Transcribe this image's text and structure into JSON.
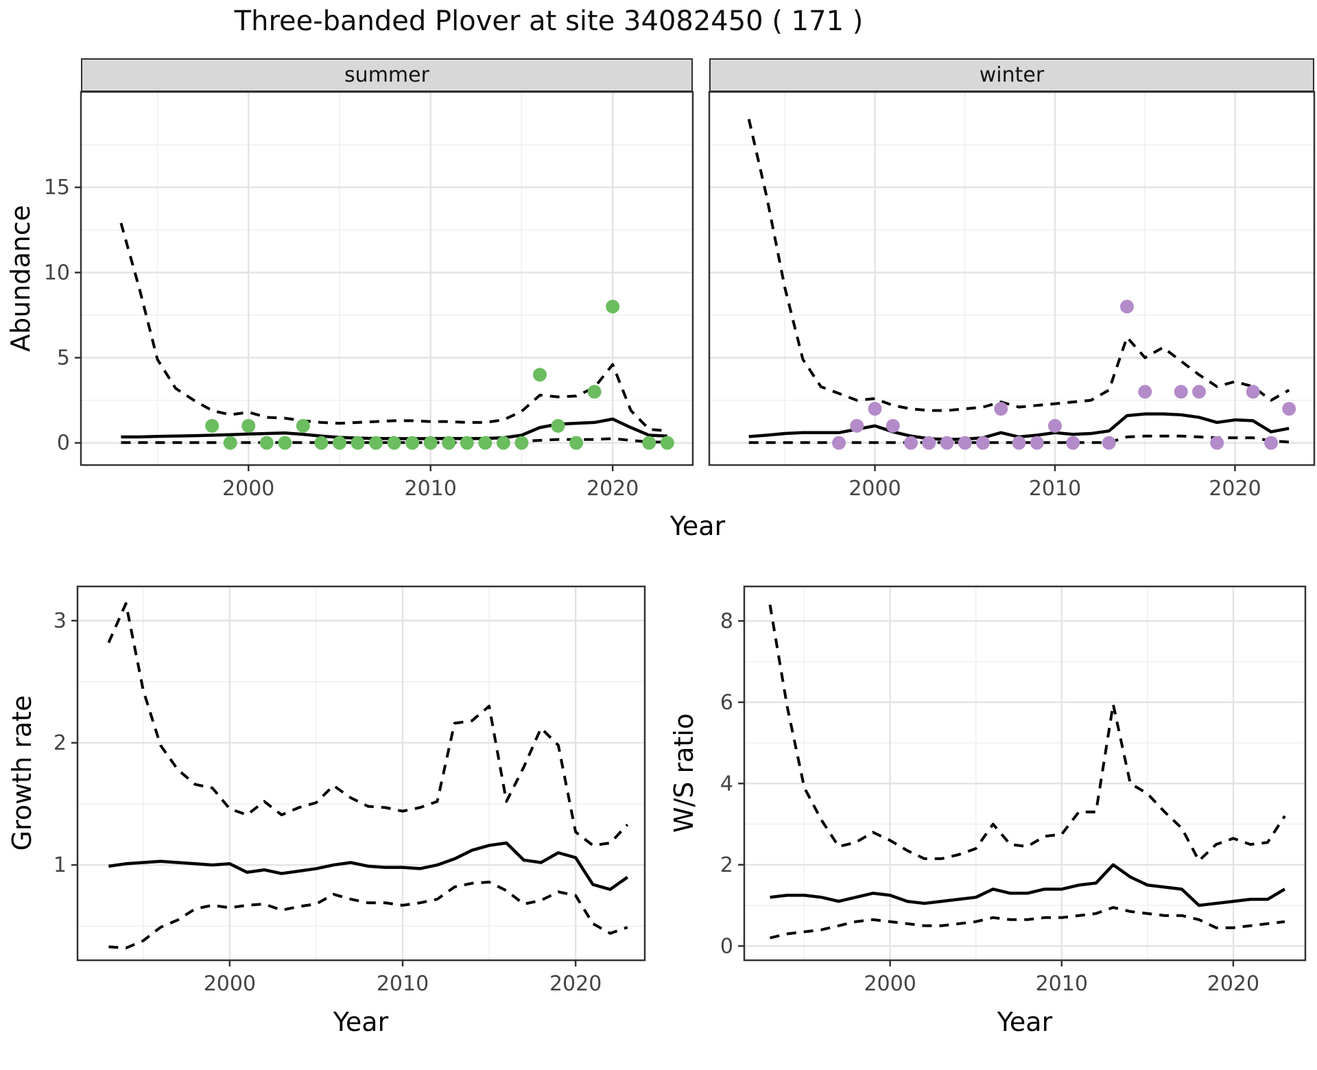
{
  "title": "Three-banded Plover at site 34082450 ( 171 )",
  "facets": {
    "summer_label": "summer",
    "winter_label": "winter"
  },
  "axis_titles": {
    "x_top": "Year",
    "x_growth": "Year",
    "x_ws": "Year",
    "y_top": "Abundance",
    "y_growth": "Growth rate",
    "y_ws": "W/S ratio"
  },
  "colors": {
    "summer_point": "#6BBD5F",
    "winter_point": "#B48BC9",
    "line": "#000000",
    "grid_major": "#E3E3E3",
    "grid_minor": "#EFEFEF",
    "strip_bg": "#D8D8D8",
    "panel_border": "#333333",
    "tick_text": "#444444"
  },
  "chart_data": [
    {
      "id": "abundance_summer",
      "type": "line+scatter",
      "facet_label": "summer",
      "xlabel": "Year",
      "ylabel": "Abundance",
      "xlim": [
        1990.8,
        2024.4
      ],
      "ylim": [
        -1.3,
        20.6
      ],
      "x_ticks": [
        2000,
        2010,
        2020
      ],
      "x_minor": [
        1995,
        2005,
        2015
      ],
      "y_ticks": [
        0,
        5,
        10,
        15
      ],
      "y_minor": [
        2.5,
        7.5,
        12.5,
        17.5
      ],
      "years": [
        1993,
        1994,
        1995,
        1996,
        1997,
        1998,
        1999,
        2000,
        2001,
        2002,
        2003,
        2004,
        2005,
        2006,
        2007,
        2008,
        2009,
        2010,
        2011,
        2012,
        2013,
        2014,
        2015,
        2016,
        2017,
        2018,
        2019,
        2020,
        2021,
        2022,
        2023
      ],
      "series": [
        {
          "name": "median",
          "linetype": "solid",
          "values": [
            0.35,
            0.35,
            0.38,
            0.4,
            0.42,
            0.45,
            0.48,
            0.52,
            0.55,
            0.58,
            0.5,
            0.4,
            0.32,
            0.28,
            0.26,
            0.25,
            0.25,
            0.25,
            0.26,
            0.25,
            0.26,
            0.3,
            0.45,
            0.9,
            1.1,
            1.15,
            1.2,
            1.4,
            0.9,
            0.45,
            0.4
          ]
        },
        {
          "name": "upper_95ci",
          "linetype": "dashed",
          "values": [
            12.9,
            9.1,
            4.9,
            3.2,
            2.5,
            1.9,
            1.65,
            1.8,
            1.5,
            1.45,
            1.3,
            1.2,
            1.15,
            1.2,
            1.25,
            1.3,
            1.3,
            1.25,
            1.25,
            1.2,
            1.2,
            1.35,
            1.85,
            2.8,
            2.7,
            2.75,
            3.25,
            4.6,
            1.9,
            0.8,
            0.7
          ]
        },
        {
          "name": "lower_95ci",
          "linetype": "dashed",
          "values": [
            0.02,
            0.02,
            0.02,
            0.02,
            0.02,
            0.02,
            0.02,
            0.02,
            0.02,
            0.02,
            0.02,
            0.02,
            0.02,
            0.02,
            0.02,
            0.02,
            0.02,
            0.02,
            0.02,
            0.02,
            0.02,
            0.05,
            0.1,
            0.15,
            0.2,
            0.2,
            0.2,
            0.25,
            0.15,
            0.05,
            0.05
          ]
        }
      ],
      "points": {
        "color": "#6BBD5F",
        "x": [
          1998,
          1999,
          2000,
          2001,
          2002,
          2003,
          2004,
          2005,
          2006,
          2007,
          2008,
          2009,
          2010,
          2011,
          2012,
          2013,
          2014,
          2015,
          2016,
          2017,
          2018,
          2019,
          2020,
          2022,
          2023
        ],
        "y": [
          1,
          0,
          1,
          0,
          0,
          1,
          0,
          0,
          0,
          0,
          0,
          0,
          0,
          0,
          0,
          0,
          0,
          0,
          4,
          1,
          0,
          3,
          8,
          0,
          0
        ]
      }
    },
    {
      "id": "abundance_winter",
      "type": "line+scatter",
      "facet_label": "winter",
      "xlabel": "Year",
      "ylabel": "Abundance",
      "xlim": [
        1990.8,
        2024.4
      ],
      "ylim": [
        -1.3,
        20.6
      ],
      "x_ticks": [
        2000,
        2010,
        2020
      ],
      "x_minor": [
        1995,
        2005,
        2015
      ],
      "y_ticks": [
        0,
        5,
        10,
        15
      ],
      "y_minor": [
        2.5,
        7.5,
        12.5,
        17.5
      ],
      "years": [
        1993,
        1994,
        1995,
        1996,
        1997,
        1998,
        1999,
        2000,
        2001,
        2002,
        2003,
        2004,
        2005,
        2006,
        2007,
        2008,
        2009,
        2010,
        2011,
        2012,
        2013,
        2014,
        2015,
        2016,
        2017,
        2018,
        2019,
        2020,
        2021,
        2022,
        2023
      ],
      "series": [
        {
          "name": "median",
          "linetype": "solid",
          "values": [
            0.37,
            0.45,
            0.55,
            0.6,
            0.6,
            0.6,
            0.8,
            1.0,
            0.65,
            0.4,
            0.25,
            0.2,
            0.22,
            0.3,
            0.6,
            0.35,
            0.45,
            0.6,
            0.5,
            0.55,
            0.7,
            1.6,
            1.7,
            1.7,
            1.65,
            1.5,
            1.2,
            1.35,
            1.3,
            0.65,
            0.85
          ]
        },
        {
          "name": "upper_95ci",
          "linetype": "dashed",
          "values": [
            19.0,
            14.4,
            9.1,
            4.9,
            3.3,
            2.9,
            2.5,
            2.6,
            2.2,
            2.0,
            1.9,
            1.9,
            2.0,
            2.1,
            2.4,
            2.1,
            2.2,
            2.3,
            2.4,
            2.5,
            3.1,
            6.2,
            5.0,
            5.6,
            4.8,
            4.0,
            3.3,
            3.6,
            3.3,
            2.5,
            3.1
          ]
        },
        {
          "name": "lower_95ci",
          "linetype": "dashed",
          "values": [
            0.02,
            0.02,
            0.02,
            0.02,
            0.02,
            0.02,
            0.02,
            0.02,
            0.02,
            0.02,
            0.02,
            0.02,
            0.02,
            0.02,
            0.02,
            0.02,
            0.02,
            0.02,
            0.02,
            0.02,
            0.02,
            0.35,
            0.4,
            0.4,
            0.4,
            0.35,
            0.3,
            0.3,
            0.3,
            0.12,
            0.05
          ]
        }
      ],
      "points": {
        "color": "#B48BC9",
        "x": [
          1998,
          1999,
          2000,
          2001,
          2002,
          2003,
          2004,
          2005,
          2006,
          2007,
          2008,
          2009,
          2010,
          2011,
          2013,
          2014,
          2015,
          2017,
          2018,
          2019,
          2021,
          2022,
          2023
        ],
        "y": [
          0,
          1,
          2,
          1,
          0,
          0,
          0,
          0,
          0,
          2,
          0,
          0,
          1,
          0,
          0,
          8,
          3,
          3,
          3,
          0,
          3,
          0,
          2
        ]
      }
    },
    {
      "id": "growth",
      "type": "line",
      "facet_label": "",
      "xlabel": "Year",
      "ylabel": "Growth rate",
      "xlim": [
        1991.2,
        2024.0
      ],
      "ylim": [
        0.22,
        3.28
      ],
      "x_ticks": [
        2000,
        2010,
        2020
      ],
      "x_minor": [
        1995,
        2005,
        2015
      ],
      "y_ticks": [
        1,
        2,
        3
      ],
      "y_minor": [
        0.5,
        1.5,
        2.5
      ],
      "years": [
        1993,
        1994,
        1995,
        1996,
        1997,
        1998,
        1999,
        2000,
        2001,
        2002,
        2003,
        2004,
        2005,
        2006,
        2007,
        2008,
        2009,
        2010,
        2011,
        2012,
        2013,
        2014,
        2015,
        2016,
        2017,
        2018,
        2019,
        2020,
        2021,
        2022,
        2023
      ],
      "series": [
        {
          "name": "median",
          "linetype": "solid",
          "values": [
            0.99,
            1.01,
            1.02,
            1.03,
            1.02,
            1.01,
            1.0,
            1.01,
            0.94,
            0.96,
            0.93,
            0.95,
            0.97,
            1.0,
            1.02,
            0.99,
            0.98,
            0.98,
            0.97,
            1.0,
            1.05,
            1.12,
            1.16,
            1.18,
            1.04,
            1.02,
            1.1,
            1.06,
            0.84,
            0.8,
            0.9
          ]
        },
        {
          "name": "upper_95ci",
          "linetype": "dashed",
          "values": [
            2.82,
            3.14,
            2.43,
            1.98,
            1.78,
            1.66,
            1.63,
            1.46,
            1.41,
            1.52,
            1.41,
            1.47,
            1.51,
            1.65,
            1.55,
            1.48,
            1.47,
            1.44,
            1.47,
            1.52,
            2.16,
            2.18,
            2.3,
            1.52,
            1.8,
            2.12,
            1.98,
            1.27,
            1.16,
            1.18,
            1.33
          ]
        },
        {
          "name": "lower_95ci",
          "linetype": "dashed",
          "values": [
            0.33,
            0.32,
            0.38,
            0.49,
            0.55,
            0.64,
            0.67,
            0.65,
            0.67,
            0.68,
            0.63,
            0.66,
            0.68,
            0.76,
            0.72,
            0.69,
            0.69,
            0.67,
            0.69,
            0.72,
            0.82,
            0.85,
            0.86,
            0.79,
            0.68,
            0.71,
            0.78,
            0.75,
            0.52,
            0.44,
            0.49
          ]
        }
      ],
      "points": null
    },
    {
      "id": "ws",
      "type": "line",
      "facet_label": "",
      "xlabel": "Year",
      "ylabel": "W/S ratio",
      "xlim": [
        1991.5,
        2024.2
      ],
      "ylim": [
        -0.35,
        8.85
      ],
      "x_ticks": [
        2000,
        2010,
        2020
      ],
      "x_minor": [
        1995,
        2005,
        2015
      ],
      "y_ticks": [
        0,
        2,
        4,
        6,
        8
      ],
      "y_minor": [
        1,
        3,
        5,
        7
      ],
      "years": [
        1993,
        1994,
        1995,
        1996,
        1997,
        1998,
        1999,
        2000,
        2001,
        2002,
        2003,
        2004,
        2005,
        2006,
        2007,
        2008,
        2009,
        2010,
        2011,
        2012,
        2013,
        2014,
        2015,
        2016,
        2017,
        2018,
        2019,
        2020,
        2021,
        2022,
        2023
      ],
      "series": [
        {
          "name": "median",
          "linetype": "solid",
          "values": [
            1.2,
            1.25,
            1.25,
            1.2,
            1.1,
            1.2,
            1.3,
            1.25,
            1.1,
            1.05,
            1.1,
            1.15,
            1.2,
            1.4,
            1.3,
            1.3,
            1.4,
            1.4,
            1.5,
            1.55,
            2.0,
            1.7,
            1.5,
            1.45,
            1.4,
            1.0,
            1.05,
            1.1,
            1.15,
            1.15,
            1.4
          ]
        },
        {
          "name": "upper_95ci",
          "linetype": "dashed",
          "values": [
            8.4,
            5.9,
            3.9,
            3.1,
            2.45,
            2.55,
            2.8,
            2.6,
            2.35,
            2.15,
            2.15,
            2.25,
            2.4,
            3.0,
            2.5,
            2.45,
            2.7,
            2.75,
            3.3,
            3.3,
            5.95,
            4.0,
            3.75,
            3.3,
            2.9,
            2.1,
            2.5,
            2.65,
            2.5,
            2.55,
            3.2
          ]
        },
        {
          "name": "lower_95ci",
          "linetype": "dashed",
          "values": [
            0.2,
            0.3,
            0.35,
            0.4,
            0.5,
            0.6,
            0.65,
            0.6,
            0.55,
            0.5,
            0.5,
            0.55,
            0.6,
            0.7,
            0.65,
            0.65,
            0.7,
            0.7,
            0.75,
            0.8,
            0.95,
            0.85,
            0.8,
            0.75,
            0.75,
            0.65,
            0.45,
            0.45,
            0.5,
            0.55,
            0.6
          ]
        }
      ],
      "points": null
    }
  ]
}
